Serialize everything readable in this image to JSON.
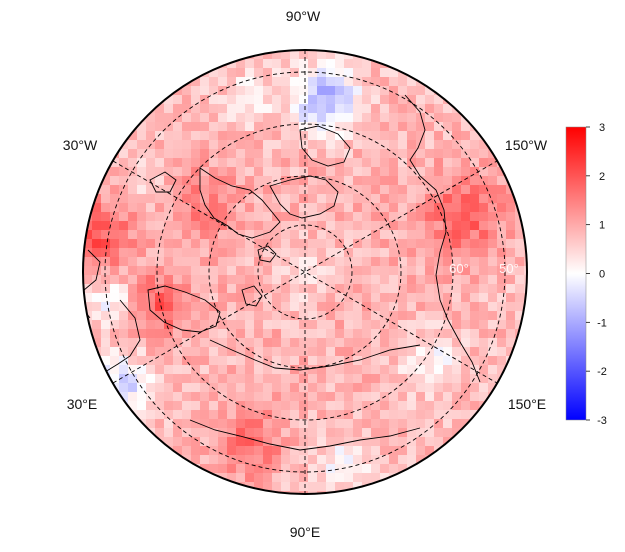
{
  "map": {
    "projection": "north-polar-stereographic",
    "longitude_labels": {
      "top": "90°W",
      "upper_left": "30°W",
      "upper_right": "150°W",
      "lower_left": "30°E",
      "lower_right": "150°E",
      "bottom": "90°E"
    },
    "latitude_labels": [
      "60°",
      "50°"
    ],
    "gridline_style": "dashed",
    "coastlines": true
  },
  "colorbar": {
    "max": 3,
    "min": -3,
    "ticks": [
      "3",
      "2",
      "1",
      "0",
      "-1",
      "-2",
      "-3"
    ],
    "colors": {
      "high": "#ff0000",
      "mid": "#ffffff",
      "low": "#0000ff"
    }
  }
}
